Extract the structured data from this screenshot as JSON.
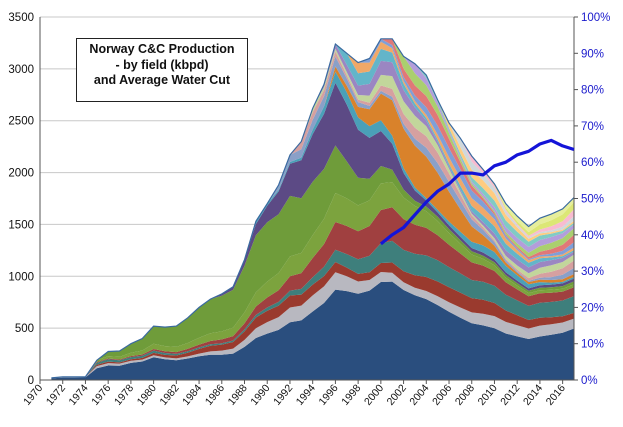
{
  "chart_data": {
    "type": "area",
    "title_lines": [
      "Norway C&C Production",
      "- by field (kbpd)",
      "and Average Water Cut"
    ],
    "x_ticks": [
      "1970",
      "1972",
      "1974",
      "1976",
      "1978",
      "1980",
      "1982",
      "1984",
      "1986",
      "1988",
      "1990",
      "1992",
      "1994",
      "1996",
      "1998",
      "2000",
      "2002",
      "2004",
      "2006",
      "2008",
      "2010",
      "2012",
      "2014",
      "2016"
    ],
    "x_range": [
      1970,
      2017
    ],
    "y_left": {
      "ticks": [
        "0",
        "500",
        "1000",
        "1500",
        "2000",
        "2500",
        "3000",
        "3500"
      ],
      "range": [
        0,
        3500
      ]
    },
    "y_right": {
      "ticks": [
        "0%",
        "10%",
        "20%",
        "30%",
        "40%",
        "50%",
        "60%",
        "70%",
        "80%",
        "90%",
        "100%"
      ],
      "range": [
        0,
        100
      ]
    },
    "years": [
      1971,
      1972,
      1973,
      1974,
      1975,
      1976,
      1977,
      1978,
      1979,
      1980,
      1981,
      1982,
      1983,
      1984,
      1985,
      1986,
      1987,
      1988,
      1989,
      1990,
      1991,
      1992,
      1993,
      1994,
      1995,
      1996,
      1997,
      1998,
      1999,
      2000,
      2001,
      2002,
      2003,
      2004,
      2005,
      2006,
      2007,
      2008,
      2009,
      2010,
      2011,
      2012,
      2013,
      2014,
      2015,
      2016,
      2017
    ],
    "total_production": [
      20,
      30,
      30,
      30,
      190,
      275,
      280,
      350,
      400,
      520,
      510,
      520,
      600,
      700,
      780,
      830,
      900,
      1160,
      1530,
      1700,
      1880,
      2170,
      2300,
      2620,
      2850,
      3240,
      3150,
      3060,
      3100,
      3290,
      3290,
      3120,
      3050,
      2940,
      2700,
      2480,
      2330,
      2160,
      2030,
      1890,
      1700,
      1580,
      1480,
      1560,
      1600,
      1650,
      1760
    ],
    "series_colors": [
      "#2a4e7e",
      "#b8b8c0",
      "#9a3a2e",
      "#3e7f7c",
      "#a04040",
      "#7ca33e",
      "#6f9c3a",
      "#5c4a85",
      "#4aa0b8",
      "#d9822b",
      "#8aa0c8",
      "#d6a0a0",
      "#c2d69b",
      "#9b86c2",
      "#63b5c9",
      "#f0a868",
      "#7f9fd8",
      "#e07878",
      "#aacf6e",
      "#b39ddb",
      "#80cbc4",
      "#ffcc80",
      "#cfd8dc",
      "#f8bbd0",
      "#dce775",
      "#e6ee9c"
    ],
    "water_cut": {
      "name": "Average Water Cut",
      "color": "#1414d8",
      "years": [
        2000,
        2001,
        2002,
        2003,
        2004,
        2005,
        2006,
        2007,
        2008,
        2009,
        2010,
        2011,
        2012,
        2013,
        2014,
        2015,
        2016,
        2017
      ],
      "values": [
        37.5,
        40,
        42,
        45.5,
        49,
        52,
        54,
        57,
        57,
        56.5,
        59,
        60,
        62,
        63,
        65,
        66,
        64.5,
        63.5
      ]
    }
  }
}
